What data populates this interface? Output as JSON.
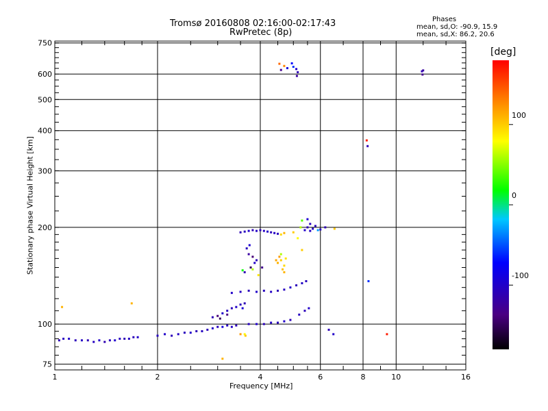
{
  "chart_data": {
    "type": "scatter",
    "title": "Tromsø 20160808 02:16:00-02:17:43",
    "subtitle": "RwPretec (8p)",
    "xlabel": "Frequency [MHz]",
    "ylabel": "Stationary phase Virtual Height [km]",
    "x_scale": "log",
    "y_scale": "log",
    "xlim": [
      1,
      16
    ],
    "ylim": [
      72,
      760
    ],
    "x_ticks": [
      1,
      2,
      4,
      6,
      8,
      10,
      16
    ],
    "y_ticks": [
      75,
      100,
      200,
      300,
      400,
      500,
      600,
      750
    ],
    "grid": true,
    "phase_header": "Phases",
    "phase_stats": [
      "mean, sd,O: -90.9, 15.9",
      "mean, sd,X: 86.2, 20.6"
    ],
    "colorbar": {
      "label": "[deg]",
      "min": -180,
      "max": 180,
      "ticks": [
        100,
        0,
        -100
      ],
      "colors": [
        "#000000",
        "#4b0082",
        "#0000ff",
        "#00c8ff",
        "#00ff00",
        "#ffff00",
        "#ff8c00",
        "#ff0000"
      ]
    },
    "series": [
      {
        "name": "",
        "points": [
          [
            1.03,
            89,
            -110
          ],
          [
            1.06,
            90,
            -105
          ],
          [
            1.1,
            90,
            -100
          ],
          [
            1.15,
            89,
            -108
          ],
          [
            1.2,
            89,
            -102
          ],
          [
            1.25,
            89,
            -110
          ],
          [
            1.3,
            88,
            -104
          ],
          [
            1.35,
            89,
            -100
          ],
          [
            1.4,
            88,
            -112
          ],
          [
            1.45,
            89,
            -106
          ],
          [
            1.5,
            89,
            -98
          ],
          [
            1.55,
            90,
            -104
          ],
          [
            1.6,
            90,
            -110
          ],
          [
            1.65,
            90,
            -102
          ],
          [
            1.7,
            91,
            -108
          ],
          [
            1.75,
            91,
            -100
          ],
          [
            1.05,
            113,
            110
          ],
          [
            1.68,
            116,
            110
          ],
          [
            2.0,
            92,
            -104
          ],
          [
            2.1,
            93,
            -100
          ],
          [
            2.2,
            92,
            -108
          ],
          [
            2.3,
            93,
            -102
          ],
          [
            2.4,
            94,
            -106
          ],
          [
            2.5,
            94,
            -100
          ],
          [
            2.6,
            95,
            -110
          ],
          [
            2.7,
            95,
            -104
          ],
          [
            2.8,
            96,
            -108
          ],
          [
            2.9,
            97,
            -100
          ],
          [
            3.0,
            98,
            -106
          ],
          [
            3.1,
            98,
            -90
          ],
          [
            3.2,
            99,
            -104
          ],
          [
            3.3,
            98,
            -100
          ],
          [
            3.4,
            99,
            -108
          ],
          [
            2.9,
            105,
            -110
          ],
          [
            3.0,
            106,
            -140
          ],
          [
            3.1,
            108,
            -100
          ],
          [
            3.2,
            110,
            -104
          ],
          [
            3.3,
            112,
            -108
          ],
          [
            3.4,
            113,
            -100
          ],
          [
            3.5,
            115,
            -106
          ],
          [
            3.6,
            116,
            -110
          ],
          [
            3.05,
            104,
            -150
          ],
          [
            3.2,
            107,
            -135
          ],
          [
            3.55,
            112,
            -95
          ],
          [
            3.3,
            125,
            -100
          ],
          [
            3.5,
            126,
            -104
          ],
          [
            3.7,
            127,
            -108
          ],
          [
            3.9,
            126,
            -100
          ],
          [
            4.1,
            127,
            -106
          ],
          [
            4.3,
            126,
            -102
          ],
          [
            4.5,
            127,
            -110
          ],
          [
            4.7,
            128,
            -104
          ],
          [
            4.9,
            130,
            -100
          ],
          [
            5.1,
            132,
            -108
          ],
          [
            5.3,
            134,
            -102
          ],
          [
            5.45,
            136,
            -106
          ],
          [
            3.7,
            100,
            -104
          ],
          [
            3.9,
            100,
            -100
          ],
          [
            4.1,
            100,
            -108
          ],
          [
            4.3,
            101,
            -102
          ],
          [
            4.5,
            101,
            -106
          ],
          [
            4.7,
            102,
            -100
          ],
          [
            4.9,
            103,
            -110
          ],
          [
            5.2,
            107,
            -104
          ],
          [
            5.4,
            110,
            -108
          ],
          [
            5.55,
            112,
            -100
          ],
          [
            3.6,
            93,
            80
          ],
          [
            3.62,
            92,
            100
          ],
          [
            3.5,
            193,
            -110
          ],
          [
            3.6,
            194,
            -105
          ],
          [
            3.7,
            195,
            -100
          ],
          [
            3.8,
            196,
            -108
          ],
          [
            3.9,
            195,
            -102
          ],
          [
            4.0,
            196,
            -110
          ],
          [
            4.1,
            195,
            -104
          ],
          [
            4.2,
            194,
            -100
          ],
          [
            4.3,
            193,
            -108
          ],
          [
            4.4,
            192,
            -102
          ],
          [
            4.5,
            191,
            -106
          ],
          [
            4.6,
            190,
            95
          ],
          [
            4.7,
            192,
            110
          ],
          [
            5.0,
            193,
            100
          ],
          [
            5.15,
            185,
            80
          ],
          [
            5.3,
            170,
            100
          ],
          [
            3.7,
            165,
            -120
          ],
          [
            3.8,
            162,
            -140
          ],
          [
            3.9,
            158,
            -110
          ],
          [
            3.75,
            150,
            -150
          ],
          [
            3.85,
            155,
            -100
          ],
          [
            3.65,
            172,
            -105
          ],
          [
            3.6,
            145,
            -110
          ],
          [
            3.55,
            147,
            20
          ],
          [
            3.8,
            148,
            60
          ],
          [
            3.95,
            142,
            90
          ],
          [
            4.05,
            150,
            -130
          ],
          [
            3.72,
            176,
            -95
          ],
          [
            4.5,
            155,
            110
          ],
          [
            4.6,
            158,
            100
          ],
          [
            4.7,
            152,
            95
          ],
          [
            4.55,
            162,
            120
          ],
          [
            4.65,
            148,
            105
          ],
          [
            4.75,
            160,
            90
          ],
          [
            4.45,
            158,
            115
          ],
          [
            4.6,
            165,
            60
          ],
          [
            4.7,
            145,
            110
          ],
          [
            5.4,
            196,
            -100
          ],
          [
            5.5,
            200,
            -110
          ],
          [
            5.6,
            205,
            -104
          ],
          [
            5.7,
            198,
            -100
          ],
          [
            5.8,
            202,
            -106
          ],
          [
            5.5,
            212,
            -95
          ],
          [
            5.6,
            195,
            -102
          ],
          [
            5.3,
            210,
            40
          ],
          [
            5.25,
            200,
            60
          ],
          [
            5.9,
            196,
            -30
          ],
          [
            6.0,
            197,
            -100
          ],
          [
            6.6,
            198,
            100
          ],
          [
            6.2,
            200,
            -110
          ],
          [
            4.7,
            636,
            130
          ],
          [
            4.6,
            618,
            -130
          ],
          [
            4.8,
            626,
            -90
          ],
          [
            5.0,
            632,
            -60
          ],
          [
            5.1,
            622,
            -100
          ],
          [
            5.15,
            608,
            -110
          ],
          [
            5.12,
            592,
            -120
          ],
          [
            4.95,
            648,
            -70
          ],
          [
            4.55,
            646,
            140
          ],
          [
            11.9,
            612,
            -110
          ],
          [
            11.95,
            598,
            -130
          ],
          [
            12.0,
            616,
            -120
          ],
          [
            8.2,
            373,
            170
          ],
          [
            8.25,
            358,
            -110
          ],
          [
            8.3,
            136,
            -60
          ],
          [
            9.4,
            93,
            170
          ],
          [
            6.35,
            96,
            -110
          ],
          [
            6.55,
            93,
            -100
          ],
          [
            3.1,
            78,
            110
          ],
          [
            3.5,
            93,
            120
          ]
        ]
      }
    ]
  }
}
